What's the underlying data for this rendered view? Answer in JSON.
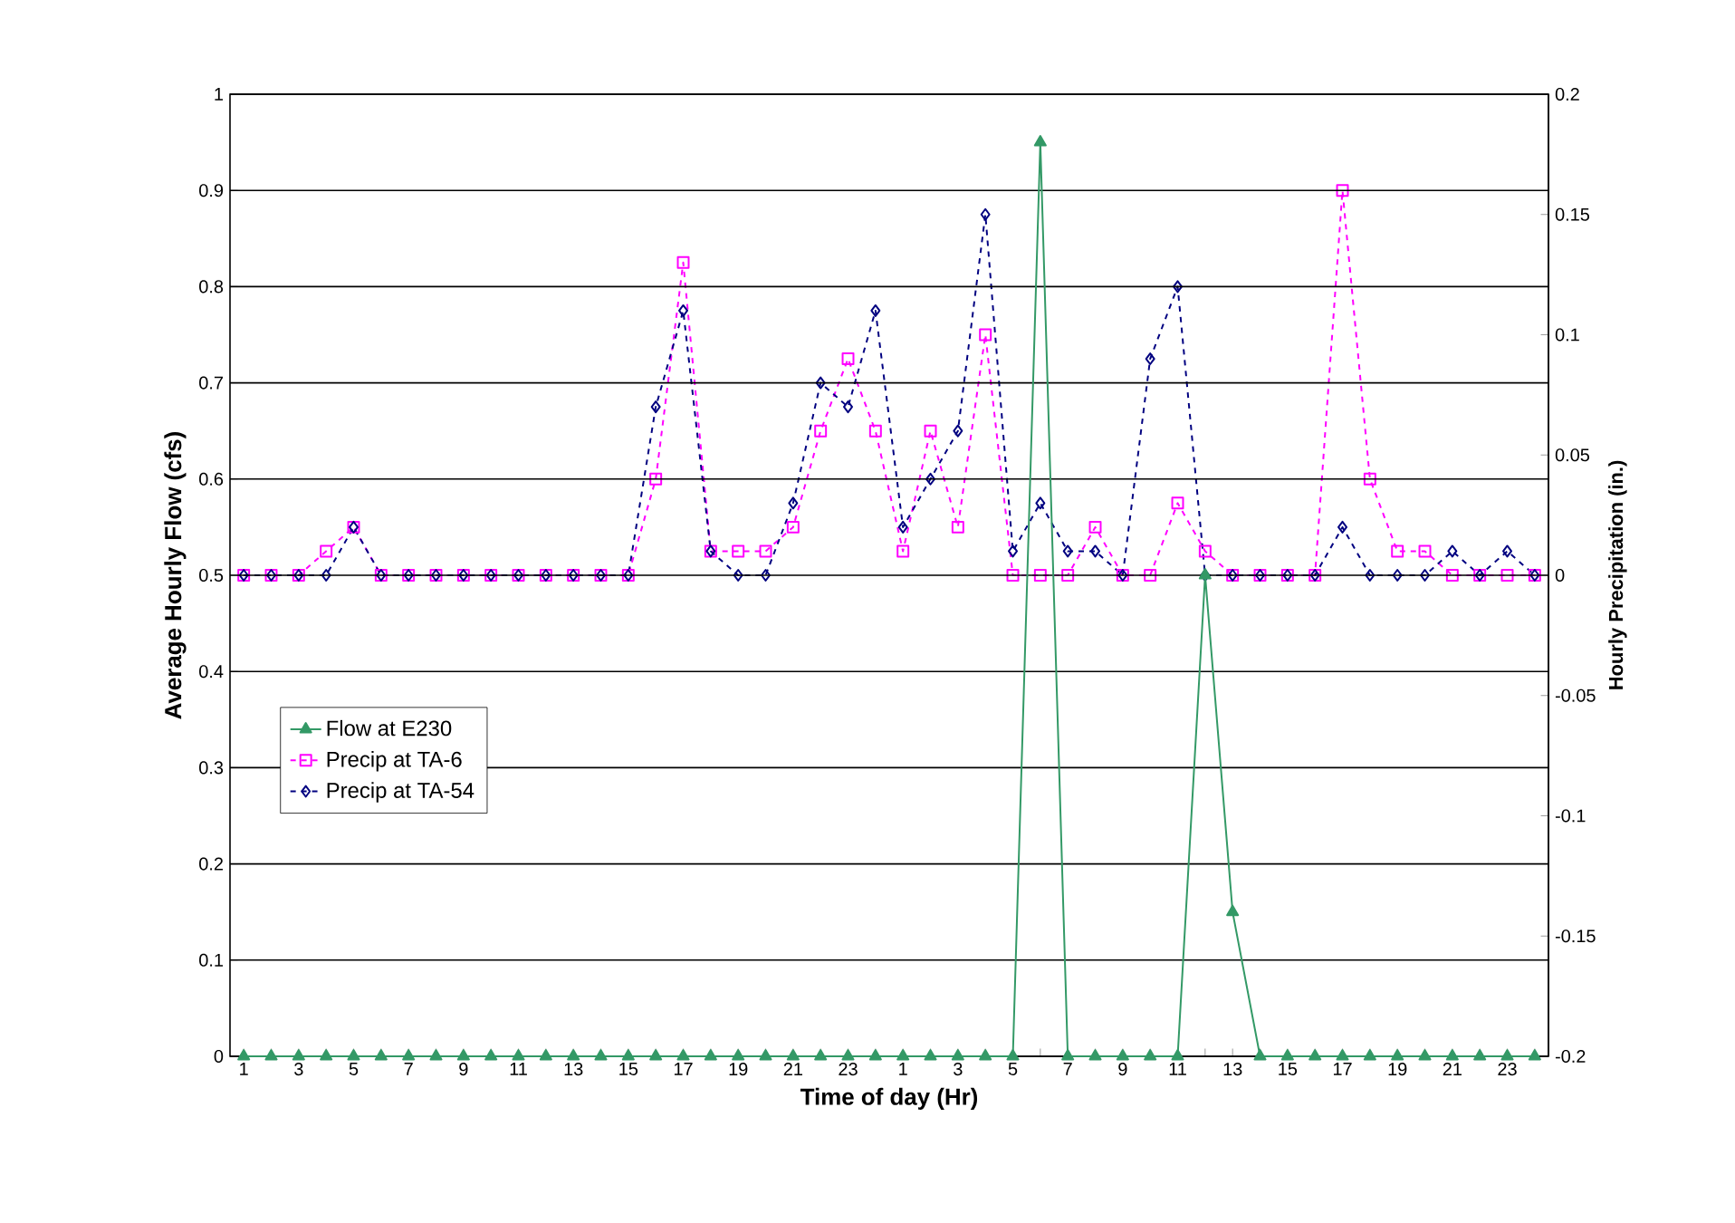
{
  "chart_data": {
    "type": "line",
    "xlabel": "Time of day (Hr)",
    "ylabel": "Average Hourly Flow (cfs)",
    "y2label": "Hourly Precipitation (in.)",
    "categories": [
      "1",
      null,
      "3",
      null,
      "5",
      null,
      "7",
      null,
      "9",
      null,
      "11",
      null,
      "13",
      null,
      "15",
      null,
      "17",
      null,
      "19",
      null,
      "21",
      null,
      "23",
      null,
      "1",
      null,
      "3",
      null,
      "5",
      null,
      "7",
      null,
      "9",
      null,
      "11",
      null,
      "13",
      null,
      "15",
      null,
      "17",
      null,
      "19",
      null,
      "21",
      null,
      "23",
      null
    ],
    "series": [
      {
        "name": "Flow at E230",
        "color": "#339966",
        "marker": "triangle",
        "line_style": "solid",
        "values": [
          0,
          0,
          0,
          0,
          0,
          0,
          0,
          0,
          0,
          0,
          0,
          0,
          0,
          0,
          0,
          0,
          0,
          0,
          0,
          0,
          0,
          0,
          0,
          0,
          0,
          0,
          0,
          0,
          0,
          0.95,
          0,
          0,
          0,
          0,
          0,
          0.5,
          0.15,
          0,
          0,
          0,
          0,
          0,
          0,
          0,
          0,
          0,
          0,
          0
        ]
      },
      {
        "name": "Precip at TA-6",
        "color": "#ff00ff",
        "marker": "square",
        "line_style": "dashed",
        "axis": "y2",
        "values": [
          0,
          0,
          0,
          0.01,
          0.02,
          0,
          0,
          0,
          0,
          0,
          0,
          0,
          0,
          0,
          0,
          0.04,
          0.13,
          0.01,
          0.01,
          0.01,
          0.02,
          0.06,
          0.09,
          0.06,
          0.01,
          0.06,
          0.02,
          0.1,
          0,
          0,
          0,
          0.02,
          0,
          0,
          0.03,
          0.01,
          0,
          0,
          0,
          0,
          0.16,
          0.04,
          0.01,
          0.01,
          0,
          0,
          0,
          0
        ]
      },
      {
        "name": "Precip at TA-54",
        "color": "#000080",
        "marker": "diamond",
        "line_style": "dashed",
        "axis": "y2",
        "values": [
          0,
          0,
          0,
          0,
          0.02,
          0,
          0,
          0,
          0,
          0,
          0,
          0,
          0,
          0,
          0,
          0.07,
          0.11,
          0.01,
          0,
          0,
          0.03,
          0.08,
          0.07,
          0.11,
          0.02,
          0.04,
          0.06,
          0.15,
          0.01,
          0.03,
          0.01,
          0.01,
          0,
          0.09,
          0.12,
          0,
          0,
          0,
          0,
          0,
          0.02,
          0,
          0,
          0,
          0.01,
          0,
          0.01,
          0
        ]
      }
    ],
    "ylim": [
      0,
      1
    ],
    "yticks": [
      0,
      0.1,
      0.2,
      0.3,
      0.4,
      0.5,
      0.6,
      0.7,
      0.8,
      0.9,
      1
    ],
    "y2lim": [
      -0.2,
      0.2
    ],
    "y2ticks": [
      -0.2,
      -0.15,
      -0.1,
      -0.05,
      0,
      0.05,
      0.1,
      0.15,
      0.2
    ],
    "grid": "y",
    "legend": "left"
  }
}
